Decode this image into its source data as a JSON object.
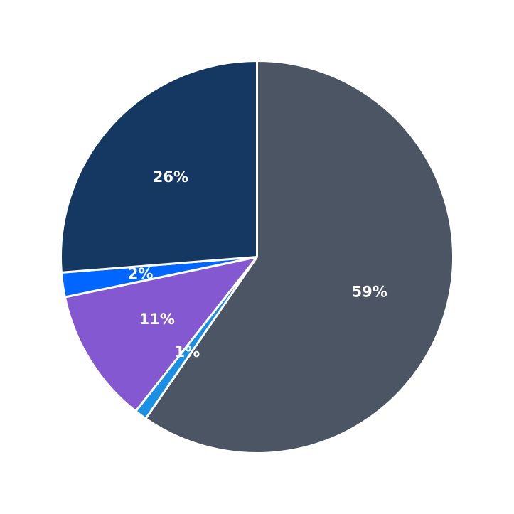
{
  "chart_data": {
    "type": "pie",
    "start_angle_deg": 90,
    "direction": "clockwise",
    "slices": [
      {
        "label": "59%",
        "value": 59,
        "color": "#4b5563"
      },
      {
        "label": "1%",
        "value": 1,
        "color": "#1a8fe3"
      },
      {
        "label": "11%",
        "value": 11,
        "color": "#8458d0"
      },
      {
        "label": "2%",
        "value": 2,
        "color": "#0066ff"
      },
      {
        "label": "26%",
        "value": 26,
        "color": "#143861"
      }
    ]
  }
}
